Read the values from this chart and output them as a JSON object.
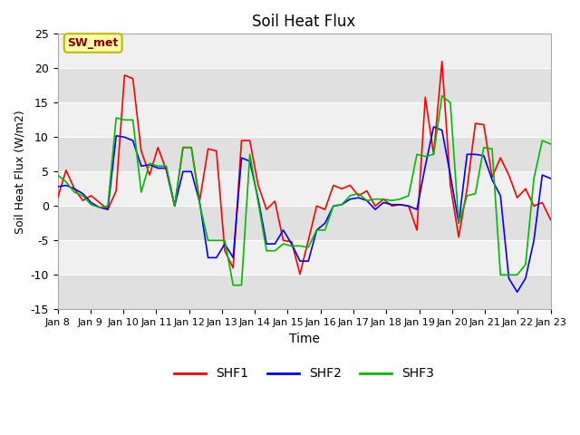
{
  "title": "Soil Heat Flux",
  "xlabel": "Time",
  "ylabel": "Soil Heat Flux (W/m2)",
  "ylim": [
    -15,
    25
  ],
  "yticks": [
    -15,
    -10,
    -5,
    0,
    5,
    10,
    15,
    20,
    25
  ],
  "xlim": [
    0,
    15
  ],
  "xtick_labels": [
    "Jan 8",
    "Jan 9",
    "Jan 10",
    "Jan 11",
    "Jan 12",
    "Jan 13",
    "Jan 14",
    "Jan 15",
    "Jan 16",
    "Jan 17",
    "Jan 18",
    "Jan 19",
    "Jan 20",
    "Jan 21",
    "Jan 22",
    "Jan 23"
  ],
  "legend_label": "SW_met",
  "series_colors": [
    "#ff0000",
    "#0000ff",
    "#00bb00"
  ],
  "series_names": [
    "SHF1",
    "SHF2",
    "SHF3"
  ],
  "bg_color": "#ffffff",
  "plot_bg_light": "#f0f0f0",
  "plot_bg_dark": "#e0e0e0",
  "SHF1": [
    1.2,
    5.2,
    2.5,
    0.8,
    1.5,
    0.5,
    -0.5,
    2.2,
    19.0,
    18.5,
    8.0,
    4.5,
    8.5,
    5.2,
    0.0,
    8.5,
    8.5,
    0.8,
    8.3,
    8.0,
    -6.5,
    -9.0,
    9.5,
    9.5,
    3.0,
    -0.5,
    0.7,
    -5.0,
    -5.2,
    -9.9,
    -5.0,
    0.0,
    -0.5,
    3.0,
    2.5,
    3.0,
    1.5,
    2.2,
    0.0,
    1.0,
    0.0,
    0.2,
    0.0,
    -3.5,
    15.8,
    7.5,
    21.0,
    3.0,
    -4.5,
    2.5,
    12.0,
    11.8,
    4.2,
    7.0,
    4.5,
    1.2,
    2.5,
    0.0,
    0.5,
    -2.0
  ],
  "SHF2": [
    2.8,
    3.0,
    2.5,
    1.8,
    0.5,
    -0.2,
    -0.5,
    10.2,
    10.0,
    9.5,
    5.8,
    6.0,
    5.5,
    5.5,
    0.0,
    5.0,
    5.0,
    0.5,
    -7.5,
    -7.5,
    -5.5,
    -7.5,
    7.0,
    6.5,
    1.0,
    -5.5,
    -5.5,
    -3.5,
    -5.5,
    -8.0,
    -8.0,
    -3.5,
    -2.5,
    0.0,
    0.2,
    1.0,
    1.2,
    0.8,
    -0.5,
    0.5,
    0.2,
    0.2,
    0.0,
    -0.5,
    5.8,
    11.5,
    11.0,
    4.5,
    -2.5,
    7.5,
    7.5,
    7.3,
    3.8,
    1.5,
    -10.5,
    -12.5,
    -10.5,
    -5.0,
    4.5,
    4.0
  ],
  "SHF3": [
    4.5,
    3.5,
    2.0,
    1.5,
    0.2,
    -0.2,
    0.0,
    12.8,
    12.5,
    12.5,
    2.0,
    6.2,
    5.8,
    5.8,
    0.0,
    8.5,
    8.5,
    0.2,
    -5.0,
    -5.0,
    -5.0,
    -11.5,
    -11.5,
    7.5,
    0.5,
    -6.5,
    -6.5,
    -5.5,
    -5.8,
    -5.8,
    -6.0,
    -3.5,
    -3.5,
    0.0,
    0.2,
    1.5,
    1.8,
    0.8,
    1.0,
    1.0,
    0.8,
    1.0,
    1.5,
    7.5,
    7.2,
    7.5,
    16.0,
    15.0,
    -2.5,
    1.5,
    1.8,
    8.5,
    8.3,
    -10.0,
    -10.0,
    -10.0,
    -8.5,
    4.0,
    9.5,
    9.0
  ]
}
